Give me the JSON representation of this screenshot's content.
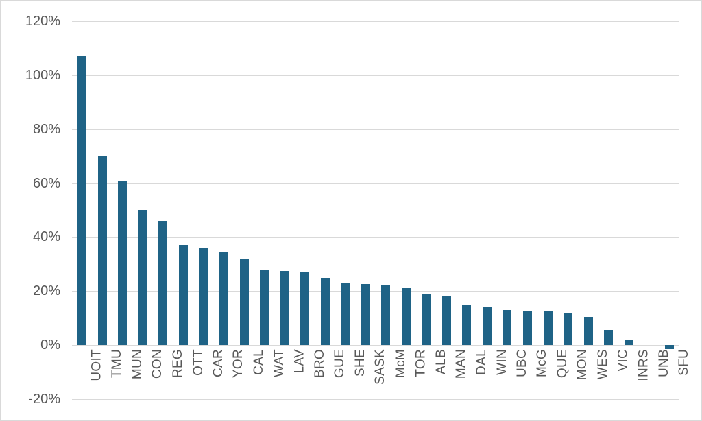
{
  "window": {
    "background": "#ffffff",
    "border_color": "#d9d9d9"
  },
  "chart_data": {
    "type": "bar",
    "title": "",
    "xlabel": "",
    "ylabel": "",
    "value_unit": "%",
    "categories": [
      "UOIT",
      "TMU",
      "MUN",
      "CON",
      "REG",
      "OTT",
      "CAR",
      "YOR",
      "CAL",
      "WAT",
      "LAV",
      "BRO",
      "GUE",
      "SHE",
      "SASK",
      "McM",
      "TOR",
      "ALB",
      "MAN",
      "DAL",
      "WIN",
      "UBC",
      "McG",
      "QUE",
      "MON",
      "WES",
      "VIC",
      "INRS",
      "UNB",
      "SFU"
    ],
    "values": [
      107,
      70,
      61,
      50,
      46,
      37,
      36,
      34.5,
      32,
      28,
      27.5,
      27,
      25,
      23,
      22.5,
      22,
      21,
      19,
      18,
      15,
      14,
      13,
      12.5,
      12.5,
      12,
      10.5,
      5.5,
      2,
      0,
      -1.5
    ],
    "ylim": [
      -20,
      120
    ],
    "ytick_step": 20,
    "yticks": [
      {
        "value": 120,
        "label": "120%"
      },
      {
        "value": 100,
        "label": "100%"
      },
      {
        "value": 80,
        "label": "80%"
      },
      {
        "value": 60,
        "label": "60%"
      },
      {
        "value": 40,
        "label": "40%"
      },
      {
        "value": 20,
        "label": "20%"
      },
      {
        "value": 0,
        "label": "0%"
      },
      {
        "value": -20,
        "label": "-20%"
      }
    ],
    "grid": true,
    "legend": false,
    "bar_color": "#1f6386",
    "gridline_color": "#d9d9d9",
    "axis_text_color": "#595959"
  }
}
